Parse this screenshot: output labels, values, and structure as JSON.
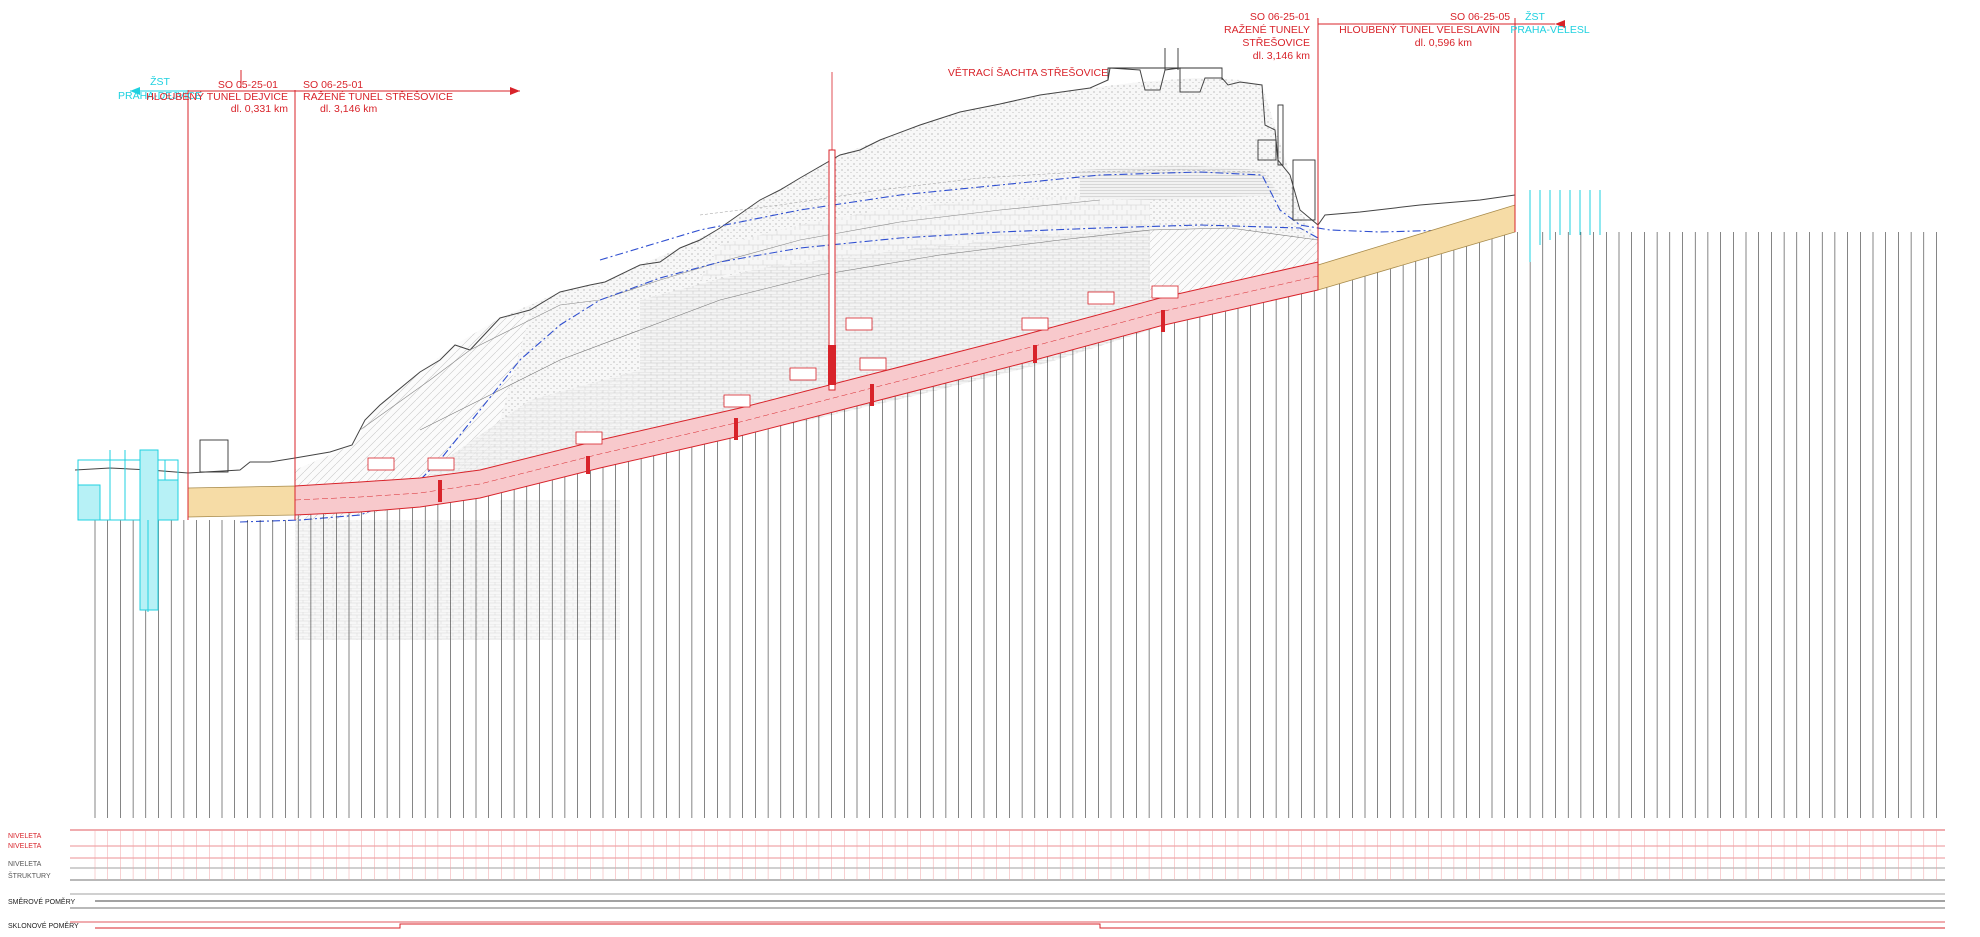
{
  "west": {
    "station_label": "ŽST",
    "station_name": "PRAHA-DEJVICE",
    "so_left_code": "SO 05-25-01",
    "so_left_name": "HLOUBENÝ TUNEL DEJVICE",
    "so_left_length": "dl. 0,331 km",
    "so_right_code": "SO 06-25-01",
    "so_right_name": "RAŽENÉ TUNEL STŘEŠOVICE",
    "so_right_length": "dl. 3,146 km"
  },
  "center": {
    "shaft_title": "VĚTRACÍ ŠACHTA STŘEŠOVICE"
  },
  "east": {
    "so_left_code": "SO 06-25-01",
    "so_left_name_1": "RAŽENÉ TUNELY",
    "so_left_name_2": "STŘEŠOVICE",
    "so_left_length": "dl. 3,146 km",
    "so_right_code": "SO 06-25-05",
    "so_right_name": "HLOUBENÝ TUNEL VELESLAVÍN",
    "so_right_length": "dl. 0,596 km",
    "station_label": "ŽST",
    "station_name": "PRAHA-VELESL"
  },
  "bottom_rows": [
    "NIVELETA",
    "NIVELETA",
    "NIVELETA",
    "ŠTRUKTURY",
    "SMĚROVÉ POMĚRY",
    "SKLONOVÉ POMĚRY"
  ],
  "colors": {
    "tunnel_fill": "#f8c9cc",
    "tunnel_stroke": "#d8232a",
    "cut_cover_fill": "#f6dca6",
    "station_cyan": "#1fd1e0",
    "groundwater": "#2f4fd0",
    "terrain": "#444444"
  }
}
